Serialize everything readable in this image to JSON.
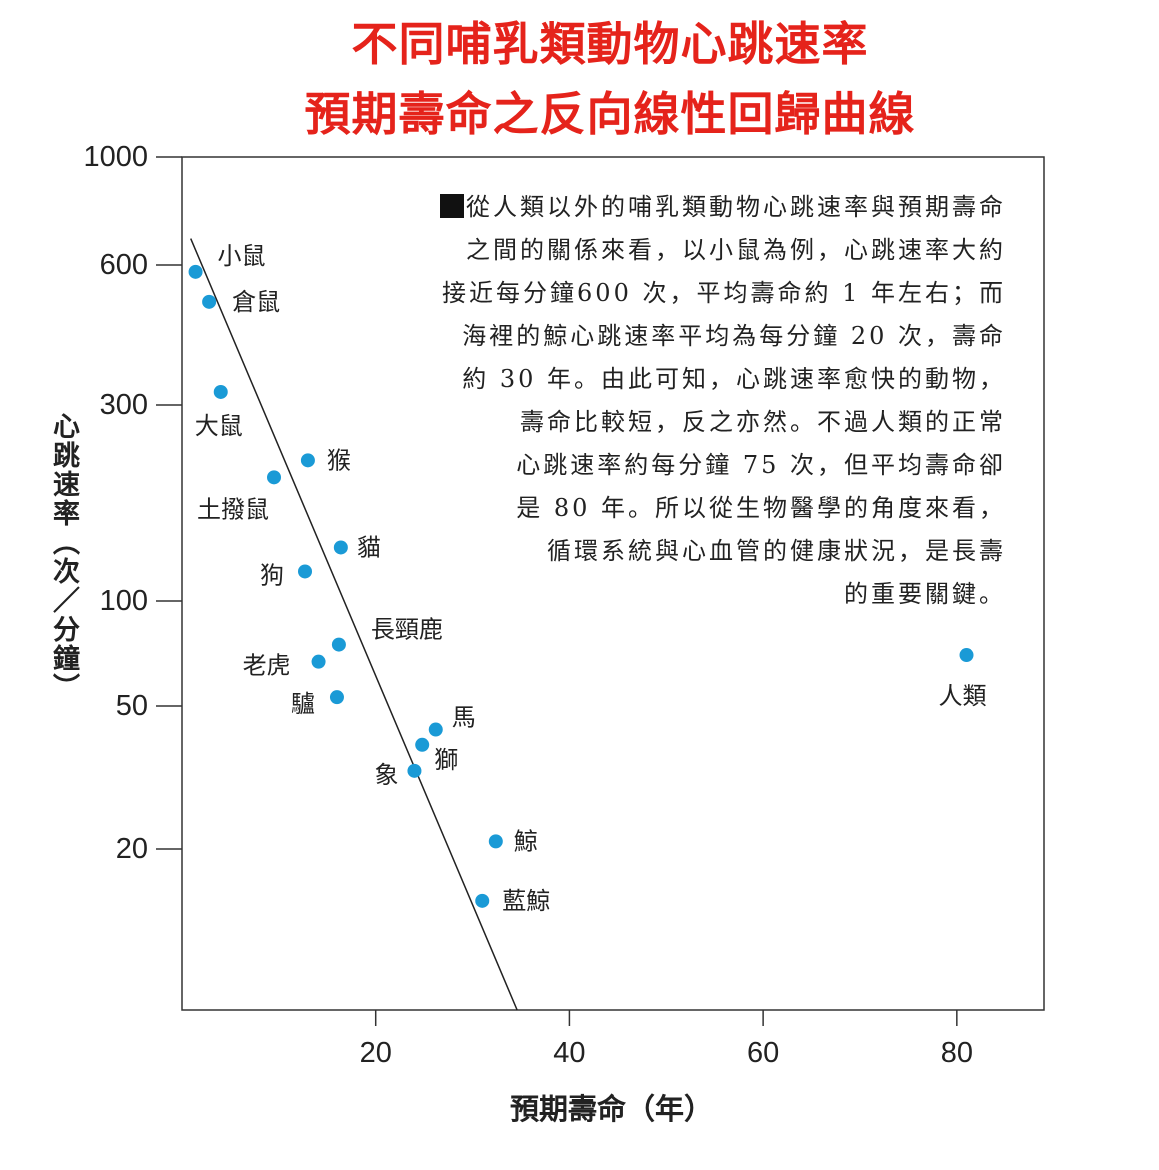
{
  "title": [
    "不同哺乳類動物心跳速率",
    "預期壽命之反向線性回歸曲線"
  ],
  "note_lines": [
    "從人類以外的哺乳類動物心跳速率與預期壽命",
    "之間的關係來看，以小鼠為例，心跳速率大約",
    "接近每分鐘600 次，平均壽命約 1 年左右；而",
    "海裡的鯨心跳速率平均為每分鐘 20 次，壽命",
    "約 30 年。由此可知，心跳速率愈快的動物，",
    "壽命比較短，反之亦然。不過人類的正常",
    "心跳速率約每分鐘 75 次，但平均壽命卻",
    "是 80 年。所以從生物醫學的角度來看，",
    "循環系統與心血管的健康狀況，是長壽",
    "的重要關鍵。"
  ],
  "chart_data": {
    "type": "scatter",
    "title": "不同哺乳類動物心跳速率 預期壽命之反向線性回歸曲線",
    "xlabel": "預期壽命（年）",
    "ylabel": "心跳速率（次／分鐘）",
    "xlim": [
      0,
      89
    ],
    "ylim": [
      10,
      1000
    ],
    "yscale": "log-like",
    "xticks": [
      20,
      40,
      60,
      80
    ],
    "yticks": [
      1000,
      600,
      300,
      100,
      50,
      20
    ],
    "grid": false,
    "point_color": "#1a9ad6",
    "points": [
      {
        "name": "小鼠",
        "x": 1.4,
        "y": 580
      },
      {
        "name": "倉鼠",
        "x": 2.8,
        "y": 500
      },
      {
        "name": "大鼠",
        "x": 4,
        "y": 320
      },
      {
        "name": "土撥鼠",
        "x": 9.5,
        "y": 200
      },
      {
        "name": "猴",
        "x": 13,
        "y": 220
      },
      {
        "name": "貓",
        "x": 16.4,
        "y": 135
      },
      {
        "name": "狗",
        "x": 12.7,
        "y": 118
      },
      {
        "name": "長頸鹿",
        "x": 16.2,
        "y": 75
      },
      {
        "name": "老虎",
        "x": 14.1,
        "y": 67
      },
      {
        "name": "驢",
        "x": 16,
        "y": 53
      },
      {
        "name": "馬",
        "x": 26.2,
        "y": 43
      },
      {
        "name": "獅",
        "x": 24.8,
        "y": 39
      },
      {
        "name": "象",
        "x": 24,
        "y": 33
      },
      {
        "name": "鯨",
        "x": 32.4,
        "y": 21
      },
      {
        "name": "藍鯨",
        "x": 31,
        "y": 16
      },
      {
        "name": "人類",
        "x": 81,
        "y": 70
      }
    ],
    "regression_line": {
      "x": [
        0.9,
        34.6
      ],
      "y": [
        680,
        10
      ]
    }
  }
}
